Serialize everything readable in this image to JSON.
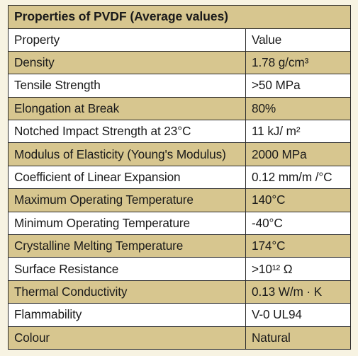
{
  "table": {
    "title": "Properties of PVDF (Average values)",
    "header": {
      "property": "Property",
      "value": "Value"
    },
    "rows": [
      {
        "property": "Density",
        "value": "1.78 g/cm³"
      },
      {
        "property": "Tensile Strength",
        "value": ">50 MPa"
      },
      {
        "property": "Elongation at Break",
        "value": "80%"
      },
      {
        "property": "Notched Impact Strength at 23°C",
        "value": "11 kJ/ m²"
      },
      {
        "property": "Modulus of Elasticity (Young's Modulus)",
        "value": "2000 MPa"
      },
      {
        "property": "Coefficient of Linear Expansion",
        "value": "0.12 mm/m /°C"
      },
      {
        "property": "Maximum Operating Temperature",
        "value": "140°C"
      },
      {
        "property": "Minimum Operating Temperature",
        "value": "-40°C"
      },
      {
        "property": "Crystalline Melting Temperature",
        "value": "174°C"
      },
      {
        "property": "Surface Resistance",
        "value": ">10¹² Ω"
      },
      {
        "property": "Thermal Conductivity",
        "value": "0.13 W/m · K"
      },
      {
        "property": "Flammability",
        "value": "V-0 UL94"
      },
      {
        "property": "Colour",
        "value": "Natural"
      }
    ]
  },
  "colors": {
    "band": "#d7c68f",
    "white_row": "#ffffff",
    "border": "#2b2b2b",
    "background": "#f7f3e2"
  }
}
